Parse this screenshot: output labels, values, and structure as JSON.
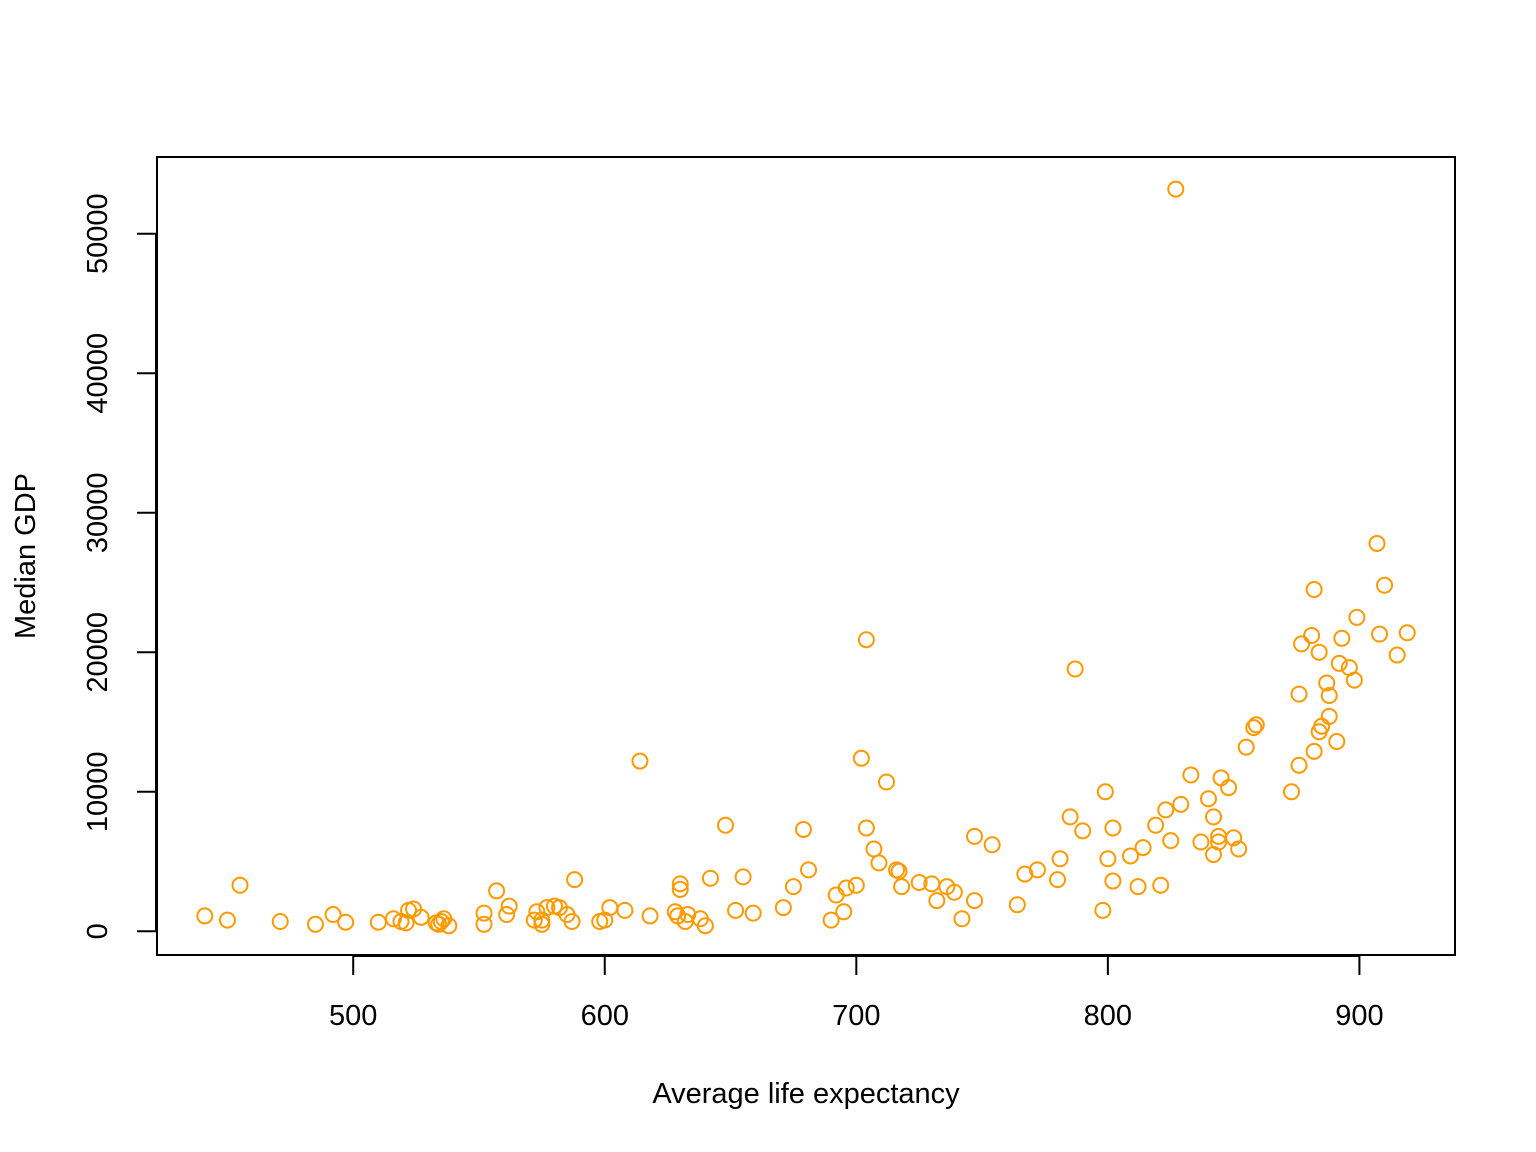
{
  "colors": {
    "points": "#FF9900",
    "axes": "#000000",
    "background": "#FFFFFF"
  },
  "chart_data": {
    "type": "scatter",
    "title": "",
    "xlabel": "Average life expectancy",
    "ylabel": "Median GDP",
    "xlim": [
      422,
      938
    ],
    "ylim": [
      -1700,
      55500
    ],
    "xticks": [
      500,
      600,
      700,
      800,
      900
    ],
    "yticks": [
      0,
      10000,
      20000,
      30000,
      40000,
      50000
    ],
    "xtick_labels": [
      "500",
      "600",
      "700",
      "800",
      "900"
    ],
    "ytick_labels": [
      "0",
      "10000",
      "20000",
      "30000",
      "40000",
      "50000"
    ],
    "grid": false,
    "legend": "none",
    "marker": "open-circle",
    "series": [
      {
        "color": "#FF9900",
        "points": [
          [
            441,
            1100
          ],
          [
            450,
            800
          ],
          [
            455,
            3300
          ],
          [
            471,
            700
          ],
          [
            485,
            500
          ],
          [
            492,
            1200
          ],
          [
            497,
            650
          ],
          [
            510,
            650
          ],
          [
            516,
            900
          ],
          [
            519,
            700
          ],
          [
            521,
            600
          ],
          [
            522,
            1500
          ],
          [
            524,
            1600
          ],
          [
            527,
            1000
          ],
          [
            533,
            600
          ],
          [
            534,
            500
          ],
          [
            535,
            700
          ],
          [
            536,
            900
          ],
          [
            538,
            400
          ],
          [
            552,
            1300
          ],
          [
            552,
            500
          ],
          [
            557,
            2900
          ],
          [
            561,
            1200
          ],
          [
            562,
            1800
          ],
          [
            572,
            800
          ],
          [
            573,
            1400
          ],
          [
            575,
            500
          ],
          [
            575,
            800
          ],
          [
            577,
            1700
          ],
          [
            580,
            1800
          ],
          [
            582,
            1700
          ],
          [
            585,
            1200
          ],
          [
            587,
            700
          ],
          [
            588,
            3700
          ],
          [
            598,
            700
          ],
          [
            600,
            800
          ],
          [
            602,
            1700
          ],
          [
            608,
            1500
          ],
          [
            614,
            12200
          ],
          [
            618,
            1100
          ],
          [
            628,
            1400
          ],
          [
            629,
            1100
          ],
          [
            630,
            3000
          ],
          [
            630,
            3400
          ],
          [
            632,
            700
          ],
          [
            633,
            1200
          ],
          [
            638,
            900
          ],
          [
            640,
            400
          ],
          [
            642,
            3800
          ],
          [
            648,
            7600
          ],
          [
            652,
            1500
          ],
          [
            655,
            3900
          ],
          [
            659,
            1300
          ],
          [
            671,
            1700
          ],
          [
            675,
            3200
          ],
          [
            679,
            7300
          ],
          [
            681,
            4400
          ],
          [
            690,
            800
          ],
          [
            692,
            2600
          ],
          [
            695,
            1400
          ],
          [
            696,
            3100
          ],
          [
            700,
            3300
          ],
          [
            702,
            12400
          ],
          [
            704,
            7400
          ],
          [
            704,
            20900
          ],
          [
            707,
            5900
          ],
          [
            709,
            4900
          ],
          [
            712,
            10700
          ],
          [
            716,
            4400
          ],
          [
            717,
            4300
          ],
          [
            718,
            3200
          ],
          [
            725,
            3500
          ],
          [
            730,
            3400
          ],
          [
            732,
            2200
          ],
          [
            736,
            3200
          ],
          [
            739,
            2800
          ],
          [
            742,
            900
          ],
          [
            747,
            2200
          ],
          [
            747,
            6800
          ],
          [
            754,
            6200
          ],
          [
            764,
            1900
          ],
          [
            767,
            4100
          ],
          [
            772,
            4400
          ],
          [
            780,
            3700
          ],
          [
            781,
            5200
          ],
          [
            785,
            8200
          ],
          [
            787,
            18800
          ],
          [
            790,
            7200
          ],
          [
            798,
            1500
          ],
          [
            799,
            10000
          ],
          [
            800,
            5200
          ],
          [
            802,
            3600
          ],
          [
            802,
            7400
          ],
          [
            809,
            5400
          ],
          [
            812,
            3200
          ],
          [
            814,
            6000
          ],
          [
            819,
            7600
          ],
          [
            821,
            3300
          ],
          [
            823,
            8700
          ],
          [
            825,
            6500
          ],
          [
            827,
            53200
          ],
          [
            829,
            9100
          ],
          [
            833,
            11200
          ],
          [
            837,
            6400
          ],
          [
            840,
            9500
          ],
          [
            842,
            8200
          ],
          [
            842,
            5500
          ],
          [
            844,
            6400
          ],
          [
            844,
            6800
          ],
          [
            845,
            11000
          ],
          [
            848,
            10300
          ],
          [
            850,
            6700
          ],
          [
            852,
            5900
          ],
          [
            855,
            13200
          ],
          [
            858,
            14600
          ],
          [
            859,
            14800
          ],
          [
            873,
            10000
          ],
          [
            876,
            17000
          ],
          [
            876,
            11900
          ],
          [
            877,
            20600
          ],
          [
            881,
            21200
          ],
          [
            882,
            24500
          ],
          [
            882,
            12900
          ],
          [
            884,
            20000
          ],
          [
            884,
            14300
          ],
          [
            885,
            14700
          ],
          [
            887,
            17800
          ],
          [
            888,
            16900
          ],
          [
            888,
            15400
          ],
          [
            891,
            13600
          ],
          [
            892,
            19200
          ],
          [
            893,
            21000
          ],
          [
            896,
            18900
          ],
          [
            898,
            18000
          ],
          [
            899,
            22500
          ],
          [
            907,
            27800
          ],
          [
            908,
            21300
          ],
          [
            910,
            24800
          ],
          [
            915,
            19800
          ],
          [
            919,
            21400
          ]
        ]
      }
    ]
  }
}
